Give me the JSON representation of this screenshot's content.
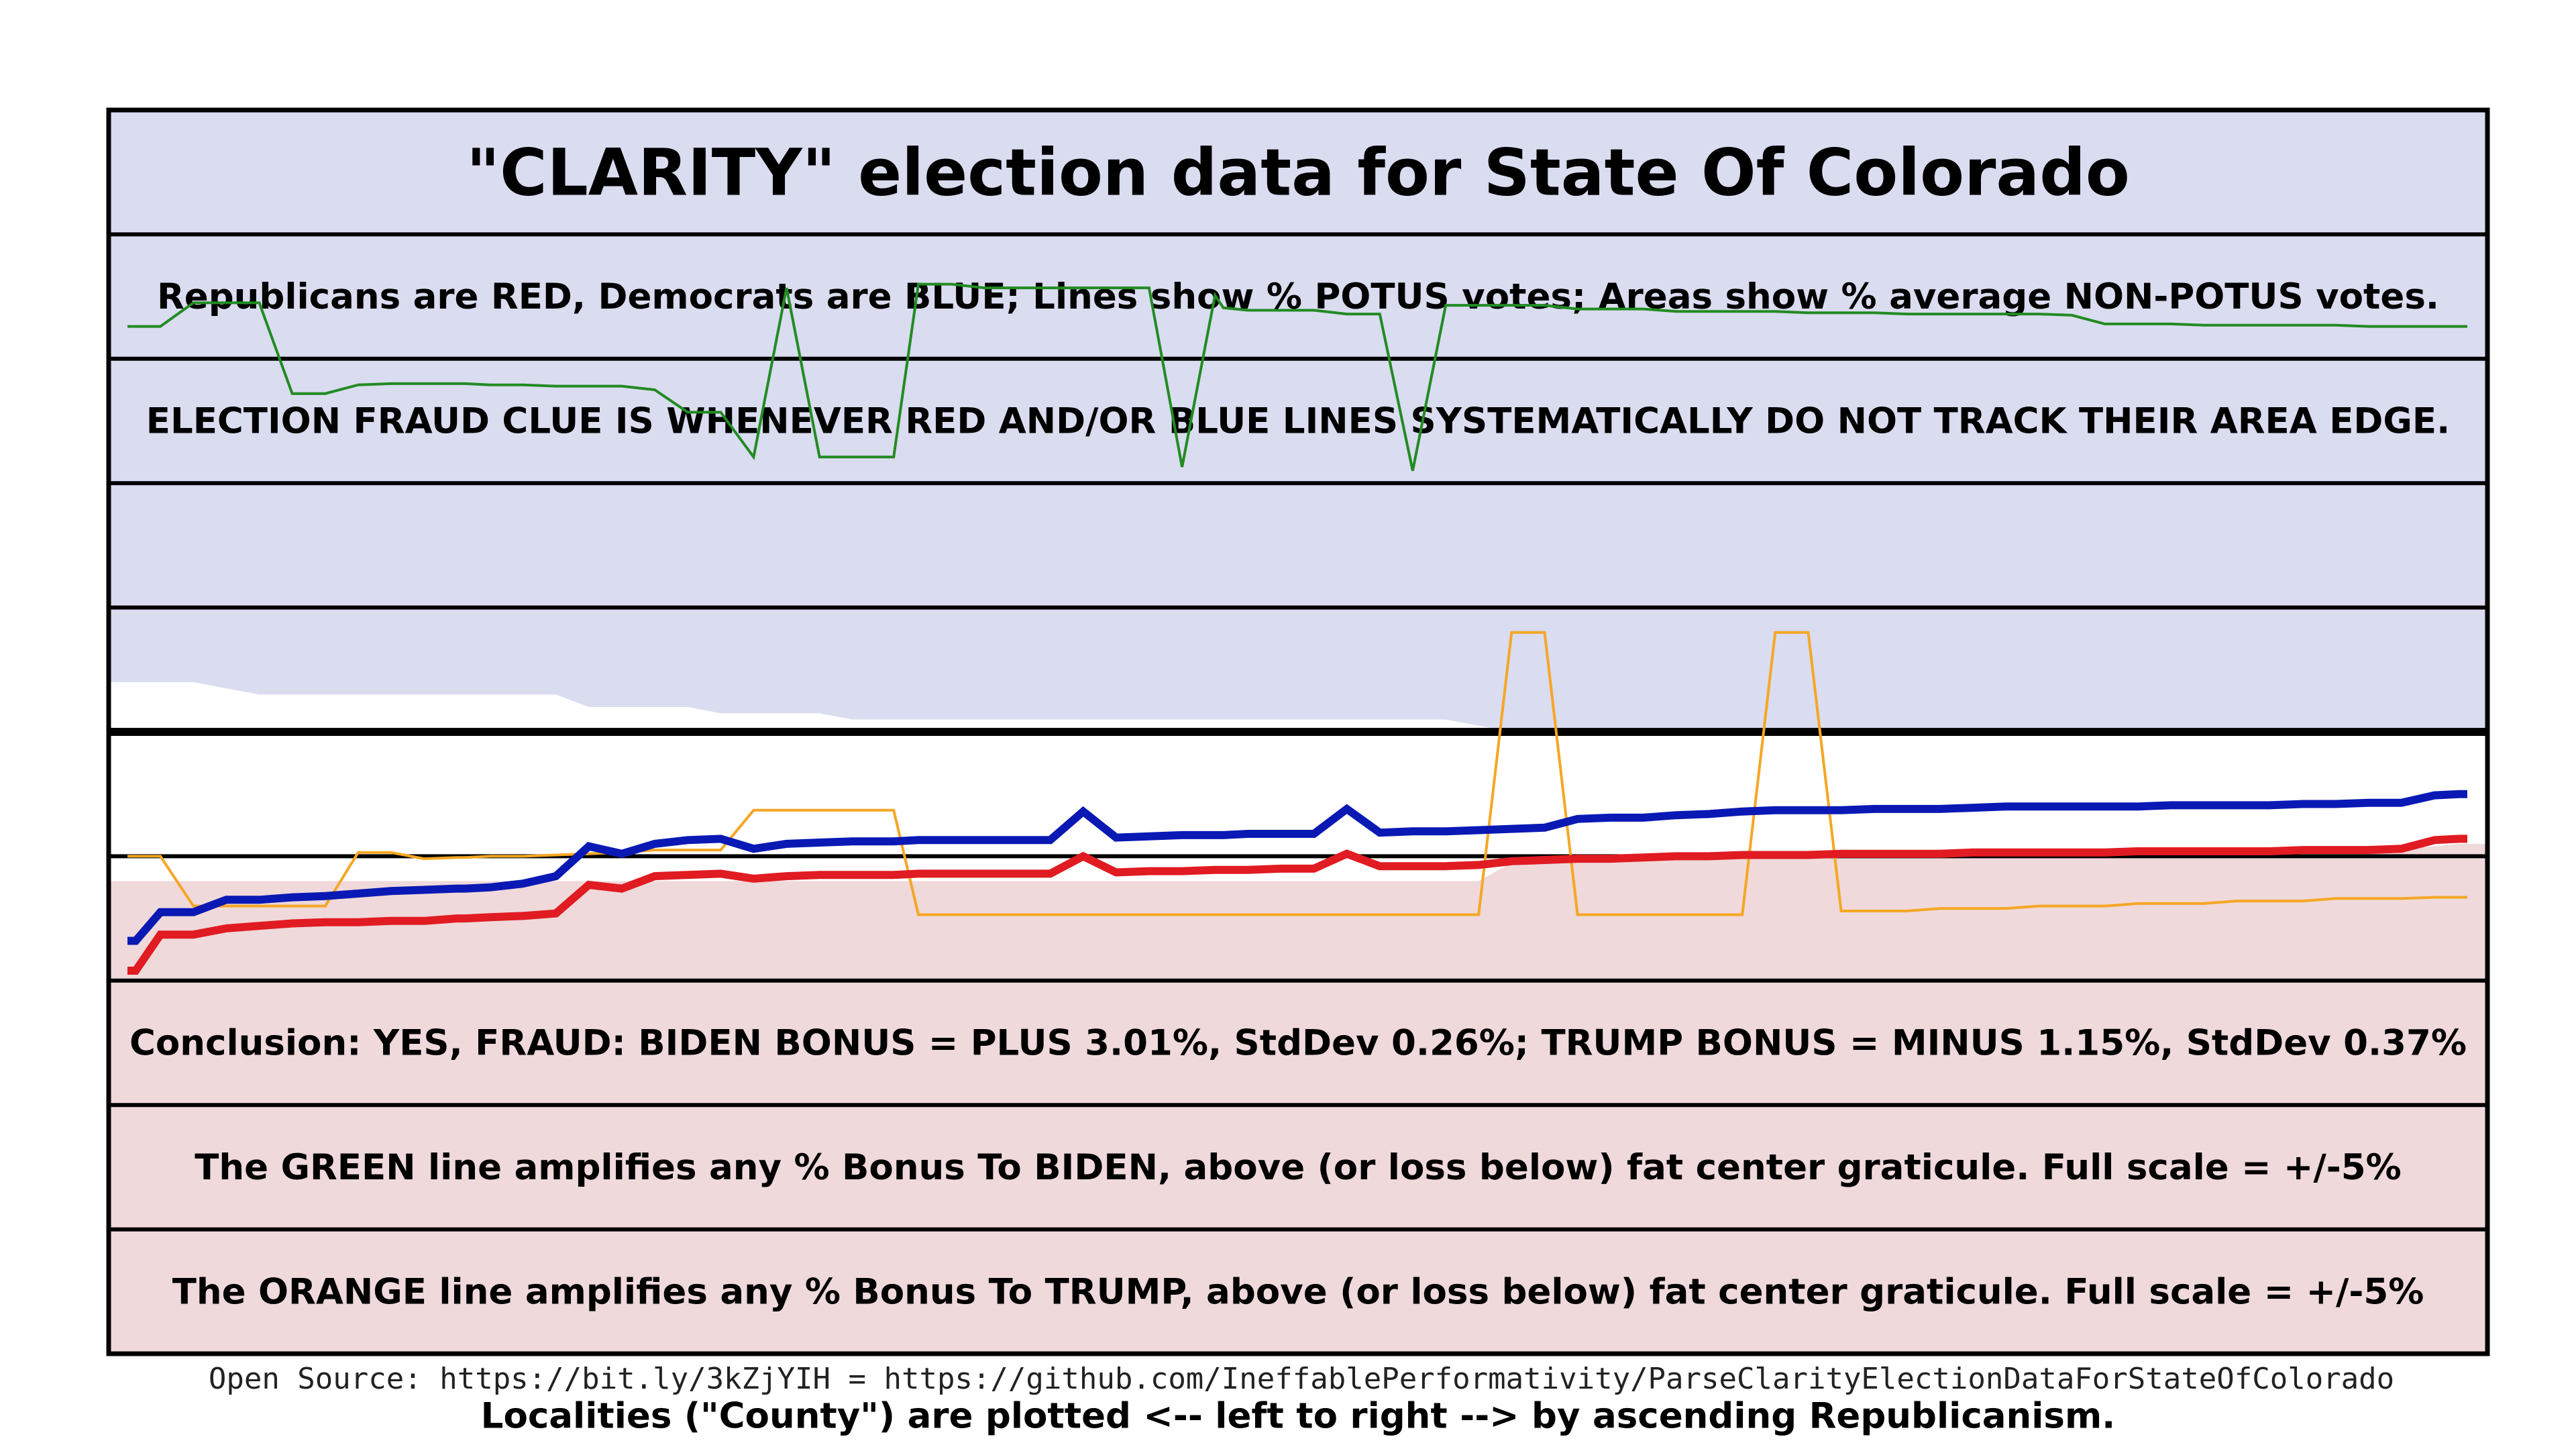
{
  "chart_data": {
    "type": "line",
    "title": "\"CLARITY\" election data for State Of Colorado",
    "banner_lines": [
      "Republicans are RED, Democrats are BLUE; Lines show % POTUS votes; Areas show % average NON-POTUS votes.",
      "ELECTION FRAUD CLUE IS WHENEVER RED AND/OR BLUE LINES SYSTEMATICALLY DO NOT TRACK THEIR AREA EDGE.",
      "",
      "",
      "",
      "",
      "Conclusion: YES, FRAUD: BIDEN BONUS = PLUS 3.01%, StdDev 0.26%; TRUMP BONUS = MINUS 1.15%, StdDev 0.37%",
      "The GREEN line amplifies any % Bonus To BIDEN, above (or loss below) fat center graticule. Full scale = +/-5%",
      "The ORANGE line amplifies any % Bonus To TRUMP, above (or loss below) fat center graticule. Full scale = +/-5%",
      "Localities (\"County\") are plotted <-- left to right --> by ascending Republicanism."
    ],
    "footer": "Open Source: https://bit.ly/3kZjYIH = https://github.com/IneffablePerformativity/ParseClarityElectionDataForStateOfColorado",
    "colors": {
      "republican": "#e11b22",
      "democrat": "#0a19b4",
      "dem_area": "#dadcf0",
      "rep_area": "#efd9da",
      "green": "#228b22",
      "orange": "#f5a623",
      "grid": "#000000"
    },
    "ylim": [
      0,
      100
    ],
    "x": [
      0,
      0.25,
      1,
      2,
      3,
      4,
      5,
      6,
      7,
      8,
      9,
      10,
      10.25,
      11,
      12,
      13,
      14,
      15,
      16,
      17,
      18,
      19,
      20,
      21,
      22,
      23,
      23.25,
      24,
      25,
      26,
      27,
      28,
      29,
      30,
      31,
      32,
      33,
      33.25,
      34,
      35,
      36,
      37,
      38,
      39,
      40,
      41,
      42,
      43,
      44,
      45,
      46,
      47,
      48,
      49,
      50,
      51,
      52,
      53,
      54,
      55,
      56,
      57,
      58,
      59,
      60,
      61,
      62,
      63,
      64,
      65,
      66,
      67,
      68,
      69,
      70,
      70.75,
      71
    ],
    "series": [
      {
        "role": "democrat-potus",
        "values": [
          33.2,
          33.2,
          35.5,
          35.5,
          36.5,
          36.5,
          36.7,
          36.8,
          37.0,
          37.2,
          37.3,
          37.4,
          37.4,
          37.5,
          37.8,
          38.4,
          40.8,
          40.2,
          41.0,
          41.3,
          41.4,
          40.6,
          41.0,
          41.1,
          41.2,
          41.2,
          41.2,
          41.3,
          41.3,
          41.3,
          41.3,
          41.3,
          43.6,
          41.5,
          41.6,
          41.7,
          41.7,
          41.7,
          41.8,
          41.8,
          41.8,
          43.8,
          41.9,
          42.0,
          42.0,
          42.1,
          42.2,
          42.3,
          43.0,
          43.1,
          43.1,
          43.3,
          43.4,
          43.6,
          43.7,
          43.7,
          43.7,
          43.8,
          43.8,
          43.8,
          43.9,
          44.0,
          44.0,
          44.0,
          44.0,
          44.0,
          44.1,
          44.1,
          44.1,
          44.1,
          44.2,
          44.2,
          44.3,
          44.3,
          44.9,
          45.0,
          45.0
        ]
      },
      {
        "role": "republican-potus",
        "values": [
          30.8,
          30.8,
          33.7,
          33.7,
          34.2,
          34.4,
          34.6,
          34.7,
          34.7,
          34.8,
          34.8,
          35.0,
          35.0,
          35.1,
          35.2,
          35.4,
          37.7,
          37.4,
          38.4,
          38.5,
          38.6,
          38.2,
          38.4,
          38.5,
          38.5,
          38.5,
          38.5,
          38.6,
          38.6,
          38.6,
          38.6,
          38.6,
          40.0,
          38.7,
          38.8,
          38.8,
          38.9,
          38.9,
          38.9,
          39.0,
          39.0,
          40.2,
          39.2,
          39.2,
          39.2,
          39.3,
          39.6,
          39.7,
          39.8,
          39.8,
          39.9,
          40.0,
          40.0,
          40.1,
          40.1,
          40.1,
          40.2,
          40.2,
          40.2,
          40.2,
          40.3,
          40.3,
          40.3,
          40.3,
          40.3,
          40.4,
          40.4,
          40.4,
          40.4,
          40.4,
          40.5,
          40.5,
          40.5,
          40.6,
          41.3,
          41.4,
          41.4
        ]
      },
      {
        "role": "democrat-area-edge",
        "values": [
          54.0,
          54.0,
          54.0,
          54.0,
          53.5,
          53.0,
          53.0,
          53.0,
          53.0,
          53.0,
          53.0,
          53.0,
          53.0,
          53.0,
          53.0,
          53.0,
          52.0,
          52.0,
          52.0,
          52.0,
          51.5,
          51.5,
          51.5,
          51.5,
          51.0,
          51.0,
          51.0,
          51.0,
          51.0,
          51.0,
          51.0,
          51.0,
          51.0,
          51.0,
          51.0,
          51.0,
          51.0,
          51.0,
          51.0,
          51.0,
          51.0,
          51.0,
          51.0,
          51.0,
          51.0,
          50.5,
          50.0,
          46.3,
          46.3,
          46.3,
          46.2,
          46.2,
          46.1,
          46.1,
          46.1,
          46.0,
          46.0,
          46.0,
          46.0,
          46.0,
          46.0,
          46.0,
          46.0,
          46.0,
          46.0,
          46.0,
          46.0,
          46.0,
          46.0,
          46.0,
          46.0,
          45.8,
          45.7,
          45.7,
          45.6,
          45.6,
          45.6
        ]
      },
      {
        "role": "republican-area-edge",
        "values": [
          38.0,
          38.0,
          38.0,
          38.0,
          38.0,
          38.0,
          38.0,
          38.0,
          38.0,
          38.0,
          38.0,
          38.0,
          38.0,
          38.0,
          38.0,
          38.0,
          38.0,
          38.0,
          38.0,
          38.0,
          38.0,
          38.0,
          38.0,
          38.0,
          38.0,
          38.0,
          38.0,
          38.0,
          38.0,
          38.0,
          38.0,
          38.0,
          38.0,
          38.0,
          38.0,
          38.0,
          38.0,
          38.0,
          38.0,
          38.0,
          38.0,
          38.0,
          38.0,
          38.0,
          38.0,
          38.0,
          39.5,
          40.0,
          40.0,
          40.0,
          40.0,
          40.1,
          40.1,
          40.2,
          40.2,
          40.2,
          40.2,
          40.2,
          40.3,
          40.3,
          40.3,
          40.3,
          40.3,
          40.3,
          40.4,
          40.4,
          40.4,
          40.4,
          40.4,
          40.5,
          40.5,
          40.5,
          40.6,
          40.6,
          40.8,
          41.0,
          41.0
        ]
      },
      {
        "role": "green-biden-bonus",
        "values": [
          82.6,
          82.6,
          82.6,
          84.5,
          84.5,
          84.5,
          77.2,
          77.2,
          77.9,
          78.0,
          78.0,
          78.0,
          78.0,
          77.9,
          77.9,
          77.8,
          77.8,
          77.8,
          77.5,
          75.7,
          75.7,
          72.1,
          85.7,
          72.1,
          72.1,
          72.1,
          72.1,
          86.0,
          86.0,
          85.7,
          85.7,
          85.7,
          85.7,
          85.7,
          85.7,
          71.3,
          85.1,
          84.1,
          83.9,
          83.9,
          83.9,
          83.6,
          83.6,
          71.0,
          84.3,
          84.3,
          84.3,
          84.3,
          84.0,
          84.0,
          84.0,
          83.8,
          83.8,
          83.8,
          83.8,
          83.7,
          83.7,
          83.7,
          83.6,
          83.6,
          83.6,
          83.6,
          83.6,
          83.5,
          82.8,
          82.8,
          82.8,
          82.7,
          82.7,
          82.7,
          82.7,
          82.7,
          82.6,
          82.6,
          82.6,
          82.6,
          82.6
        ]
      },
      {
        "role": "orange-trump-bonus",
        "values": [
          40.0,
          40.0,
          40.0,
          36.0,
          36.0,
          36.0,
          36.0,
          36.0,
          40.3,
          40.3,
          39.8,
          39.9,
          39.9,
          40.0,
          40.0,
          40.1,
          40.2,
          40.3,
          40.5,
          40.5,
          40.5,
          43.7,
          43.7,
          43.7,
          43.7,
          43.7,
          43.7,
          35.3,
          35.3,
          35.3,
          35.3,
          35.3,
          35.3,
          35.3,
          35.3,
          35.3,
          35.3,
          35.3,
          35.3,
          35.3,
          35.3,
          35.3,
          35.3,
          35.3,
          35.3,
          35.3,
          58.0,
          58.0,
          35.3,
          35.3,
          35.3,
          35.3,
          35.3,
          35.3,
          58.0,
          58.0,
          35.6,
          35.6,
          35.6,
          35.8,
          35.8,
          35.8,
          36.0,
          36.0,
          36.0,
          36.2,
          36.2,
          36.2,
          36.4,
          36.4,
          36.4,
          36.6,
          36.6,
          36.6,
          36.7,
          36.7,
          36.7
        ]
      }
    ]
  }
}
